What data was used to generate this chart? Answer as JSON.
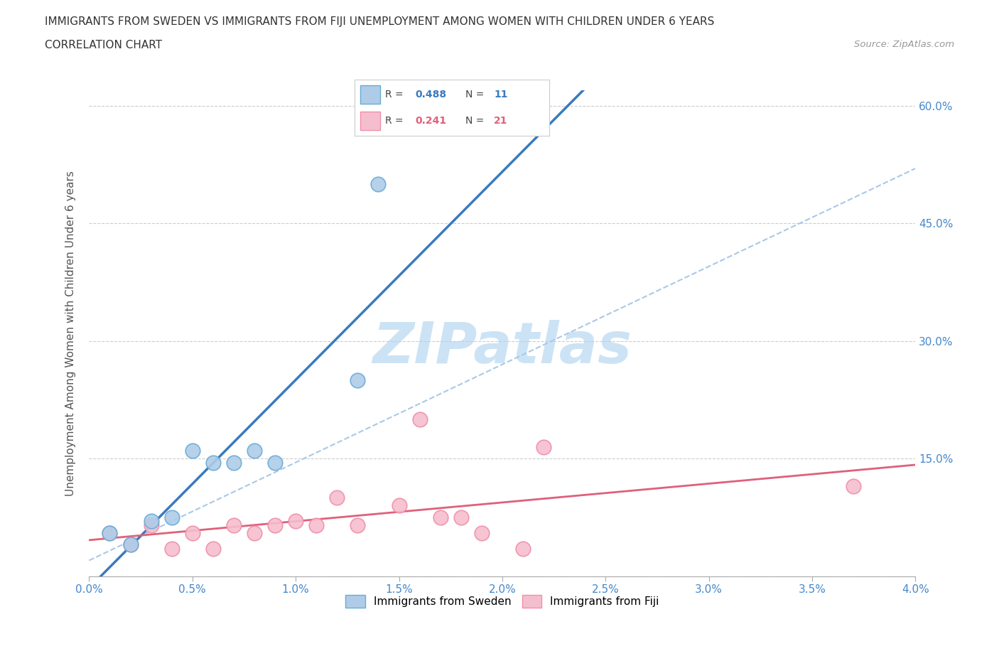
{
  "title_line1": "IMMIGRANTS FROM SWEDEN VS IMMIGRANTS FROM FIJI UNEMPLOYMENT AMONG WOMEN WITH CHILDREN UNDER 6 YEARS",
  "title_line2": "CORRELATION CHART",
  "source_text": "Source: ZipAtlas.com",
  "ylabel_label": "Unemployment Among Women with Children Under 6 years",
  "legend_sweden": "Immigrants from Sweden",
  "legend_fiji": "Immigrants from Fiji",
  "r_sweden": 0.488,
  "n_sweden": 11,
  "r_fiji": 0.241,
  "n_fiji": 21,
  "color_sweden": "#aecce8",
  "color_fiji": "#f5bece",
  "color_sweden_edge": "#6aabd6",
  "color_fiji_edge": "#f08faa",
  "color_trend_sweden": "#3a7abf",
  "color_trend_fiji": "#e0607a",
  "color_trend_dashed": "#aac8e8",
  "sweden_x": [
    0.001,
    0.002,
    0.003,
    0.004,
    0.005,
    0.006,
    0.007,
    0.008,
    0.009,
    0.013,
    0.014
  ],
  "sweden_y": [
    0.055,
    0.04,
    0.07,
    0.075,
    0.16,
    0.145,
    0.145,
    0.16,
    0.145,
    0.25,
    0.5
  ],
  "fiji_x": [
    0.001,
    0.002,
    0.003,
    0.004,
    0.005,
    0.006,
    0.007,
    0.008,
    0.009,
    0.01,
    0.011,
    0.012,
    0.013,
    0.015,
    0.016,
    0.017,
    0.018,
    0.019,
    0.021,
    0.022,
    0.037
  ],
  "fiji_y": [
    0.055,
    0.04,
    0.065,
    0.035,
    0.055,
    0.035,
    0.065,
    0.055,
    0.065,
    0.07,
    0.065,
    0.1,
    0.065,
    0.09,
    0.2,
    0.075,
    0.075,
    0.055,
    0.035,
    0.165,
    0.115
  ],
  "xlim": [
    0.0,
    0.04
  ],
  "ylim": [
    0.0,
    0.62
  ],
  "x_ticks": [
    0.0,
    0.005,
    0.01,
    0.015,
    0.02,
    0.025,
    0.03,
    0.035,
    0.04
  ],
  "x_tick_labels": [
    "0.0%",
    "0.5%",
    "1.0%",
    "1.5%",
    "2.0%",
    "2.5%",
    "3.0%",
    "3.5%",
    "4.0%"
  ],
  "y_ticks": [
    0.0,
    0.15,
    0.3,
    0.45,
    0.6
  ],
  "y_tick_labels": [
    "",
    "15.0%",
    "30.0%",
    "45.0%",
    "60.0%"
  ],
  "background_color": "#ffffff",
  "watermark": "ZIPatlas",
  "watermark_color": "#cce3f5",
  "watermark_fontsize": 58,
  "dashed_line_x": [
    0.0,
    0.04
  ],
  "dashed_line_y": [
    0.02,
    0.52
  ]
}
